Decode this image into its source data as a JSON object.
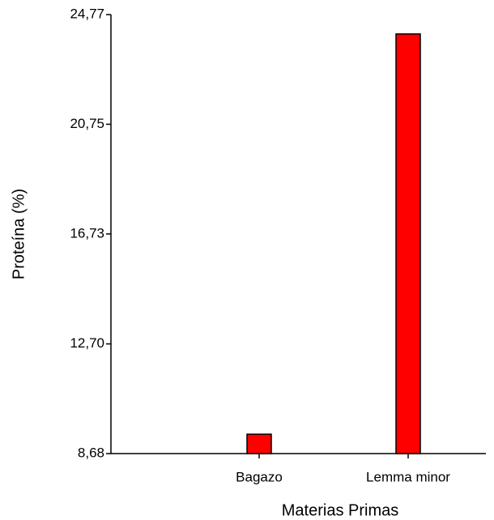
{
  "chart_data": {
    "type": "bar",
    "x_label": "Materias Primas",
    "y_label": "Proteína (%)",
    "categories": [
      "Bagazo",
      "Lemma minor"
    ],
    "values": [
      9.39,
      24.06
    ],
    "color": "#ff0000",
    "ylim": [
      8.68,
      24.77
    ],
    "yticks": [
      {
        "value": 8.68,
        "label": "8,68"
      },
      {
        "value": 12.7,
        "label": "12,70"
      },
      {
        "value": 16.73,
        "label": "16,73"
      },
      {
        "value": 20.75,
        "label": "20,75"
      },
      {
        "value": 24.77,
        "label": "24,77"
      }
    ]
  }
}
